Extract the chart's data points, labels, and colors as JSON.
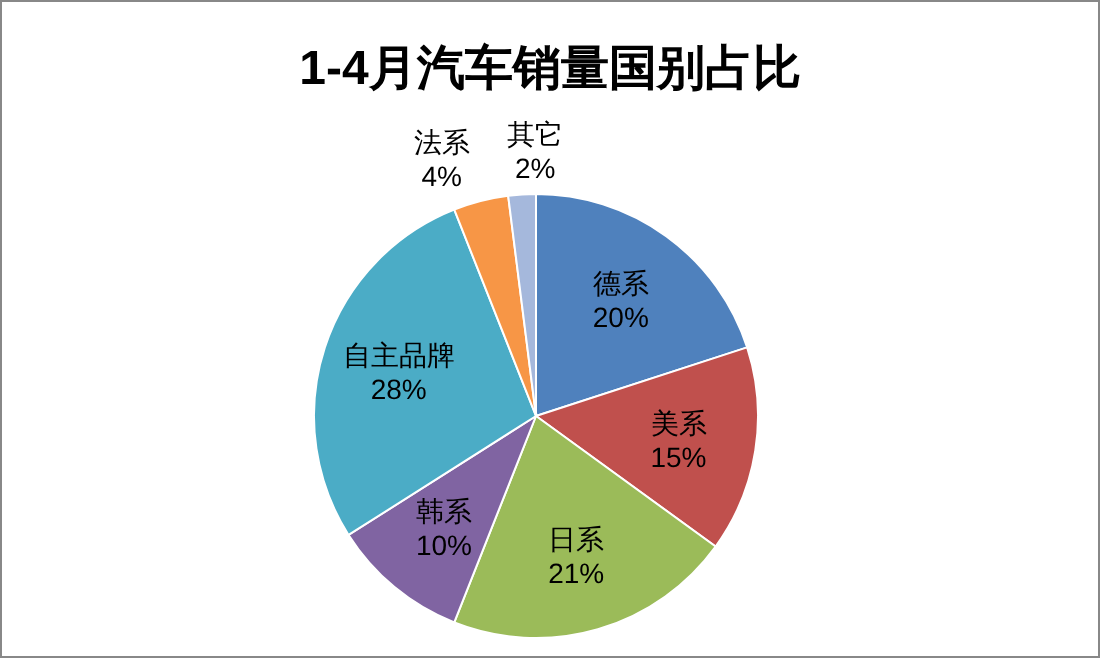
{
  "chart_data": {
    "type": "pie",
    "title": "1-4月汽车销量国别占比",
    "categories": [
      "德系",
      "美系",
      "日系",
      "韩系",
      "自主品牌",
      "法系",
      "其它"
    ],
    "values": [
      20,
      15,
      21,
      10,
      28,
      4,
      2
    ],
    "colors": [
      "#4f81bd",
      "#c0504d",
      "#9bbb59",
      "#8064a2",
      "#4bacc6",
      "#f79646",
      "#a5b8dc"
    ],
    "value_labels": [
      "20%",
      "15%",
      "21%",
      "10%",
      "28%",
      "4%",
      "2%"
    ]
  }
}
